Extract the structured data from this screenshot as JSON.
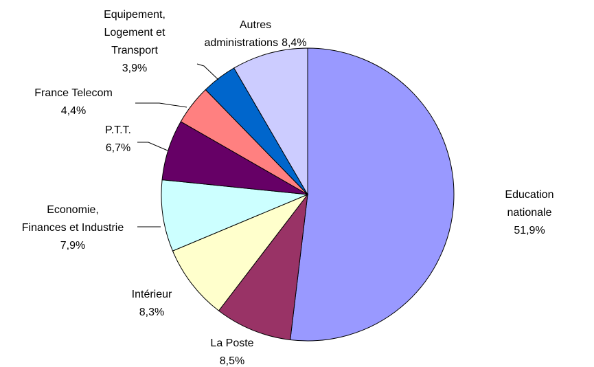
{
  "chart_data": {
    "type": "pie",
    "categories": [
      "Education nationale",
      "La Poste",
      "Intérieur",
      "Economie,\nFinances et Industrie",
      "P.T.T.",
      "France Telecom",
      "Equipement,\nLogement et\nTransport",
      "Autres\nadministrations"
    ],
    "values": [
      51.9,
      8.5,
      8.3,
      7.9,
      6.7,
      4.4,
      3.9,
      8.4
    ],
    "value_labels": [
      "51,9%",
      "8,5%",
      "8,3%",
      "7,9%",
      "6,7%",
      "4,4%",
      "3,9%",
      "8,4%"
    ],
    "colors": [
      "#9999ff",
      "#993366",
      "#ffffcc",
      "#ccffff",
      "#660066",
      "#ff8080",
      "#0066cc",
      "#ccccff"
    ]
  }
}
